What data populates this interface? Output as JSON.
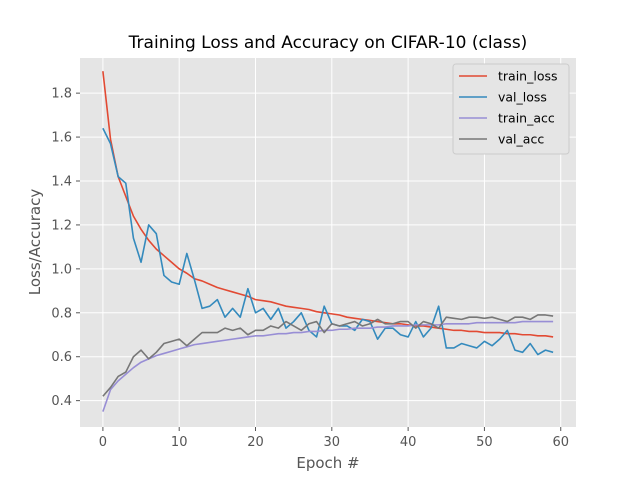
{
  "chart_data": {
    "type": "line",
    "title": "Training Loss and Accuracy on CIFAR-10 (class)",
    "xlabel": "Epoch #",
    "ylabel": "Loss/Accuracy",
    "xlim": [
      -3,
      62
    ],
    "ylim": [
      0.28,
      1.96
    ],
    "xticks": [
      0,
      10,
      20,
      30,
      40,
      50,
      60
    ],
    "yticks": [
      0.4,
      0.6,
      0.8,
      1.0,
      1.2,
      1.4,
      1.6,
      1.8
    ],
    "grid": true,
    "legend_position": "top-right",
    "x": [
      0,
      1,
      2,
      3,
      4,
      5,
      6,
      7,
      8,
      9,
      10,
      11,
      12,
      13,
      14,
      15,
      16,
      17,
      18,
      19,
      20,
      21,
      22,
      23,
      24,
      25,
      26,
      27,
      28,
      29,
      30,
      31,
      32,
      33,
      34,
      35,
      36,
      37,
      38,
      39,
      40,
      41,
      42,
      43,
      44,
      45,
      46,
      47,
      48,
      49,
      50,
      51,
      52,
      53,
      54,
      55,
      56,
      57,
      58,
      59
    ],
    "series": [
      {
        "name": "train_loss",
        "color": "#E24A33",
        "values": [
          1.9,
          1.59,
          1.42,
          1.33,
          1.24,
          1.18,
          1.13,
          1.09,
          1.06,
          1.03,
          1.0,
          0.98,
          0.955,
          0.945,
          0.93,
          0.915,
          0.905,
          0.895,
          0.885,
          0.875,
          0.86,
          0.855,
          0.85,
          0.84,
          0.83,
          0.825,
          0.82,
          0.815,
          0.805,
          0.8,
          0.795,
          0.79,
          0.78,
          0.775,
          0.77,
          0.765,
          0.76,
          0.755,
          0.75,
          0.75,
          0.745,
          0.74,
          0.74,
          0.735,
          0.73,
          0.725,
          0.72,
          0.72,
          0.715,
          0.715,
          0.71,
          0.71,
          0.71,
          0.705,
          0.705,
          0.7,
          0.7,
          0.695,
          0.695,
          0.69
        ]
      },
      {
        "name": "val_loss",
        "color": "#348ABD",
        "values": [
          1.64,
          1.57,
          1.42,
          1.39,
          1.14,
          1.03,
          1.2,
          1.16,
          0.97,
          0.94,
          0.93,
          1.07,
          0.95,
          0.82,
          0.83,
          0.86,
          0.78,
          0.82,
          0.78,
          0.91,
          0.8,
          0.82,
          0.77,
          0.82,
          0.73,
          0.76,
          0.8,
          0.72,
          0.69,
          0.83,
          0.75,
          0.74,
          0.74,
          0.72,
          0.77,
          0.76,
          0.68,
          0.73,
          0.73,
          0.7,
          0.69,
          0.76,
          0.69,
          0.73,
          0.83,
          0.64,
          0.64,
          0.66,
          0.65,
          0.64,
          0.67,
          0.65,
          0.68,
          0.72,
          0.63,
          0.62,
          0.66,
          0.61,
          0.63,
          0.62
        ]
      },
      {
        "name": "train_acc",
        "color": "#988ED5",
        "values": [
          0.35,
          0.45,
          0.49,
          0.52,
          0.55,
          0.575,
          0.59,
          0.605,
          0.615,
          0.625,
          0.635,
          0.645,
          0.655,
          0.66,
          0.665,
          0.67,
          0.675,
          0.68,
          0.685,
          0.69,
          0.695,
          0.695,
          0.7,
          0.705,
          0.705,
          0.71,
          0.71,
          0.715,
          0.715,
          0.72,
          0.72,
          0.725,
          0.725,
          0.73,
          0.73,
          0.73,
          0.735,
          0.735,
          0.74,
          0.74,
          0.74,
          0.745,
          0.745,
          0.745,
          0.745,
          0.75,
          0.75,
          0.75,
          0.75,
          0.755,
          0.755,
          0.755,
          0.755,
          0.755,
          0.755,
          0.76,
          0.76,
          0.76,
          0.76,
          0.76
        ]
      },
      {
        "name": "val_acc",
        "color": "#777777",
        "values": [
          0.42,
          0.46,
          0.51,
          0.53,
          0.6,
          0.63,
          0.59,
          0.62,
          0.66,
          0.67,
          0.68,
          0.65,
          0.68,
          0.71,
          0.71,
          0.71,
          0.73,
          0.72,
          0.73,
          0.7,
          0.72,
          0.72,
          0.74,
          0.73,
          0.76,
          0.74,
          0.72,
          0.75,
          0.76,
          0.71,
          0.75,
          0.74,
          0.75,
          0.76,
          0.74,
          0.75,
          0.77,
          0.75,
          0.75,
          0.76,
          0.76,
          0.73,
          0.76,
          0.75,
          0.73,
          0.78,
          0.775,
          0.77,
          0.78,
          0.78,
          0.775,
          0.78,
          0.77,
          0.76,
          0.78,
          0.78,
          0.77,
          0.79,
          0.79,
          0.785
        ]
      }
    ]
  }
}
